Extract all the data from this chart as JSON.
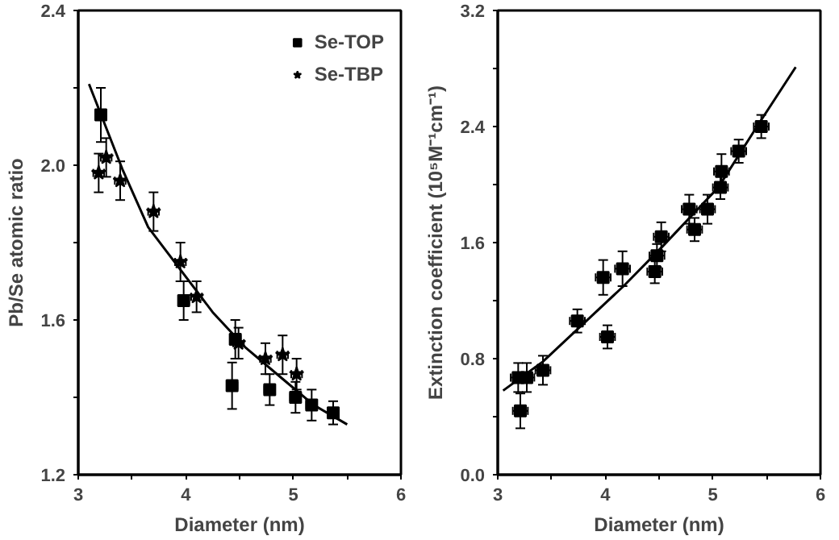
{
  "chart_data": [
    {
      "type": "scatter",
      "xlabel": "Diameter (nm)",
      "ylabel": "Pb/Se atomic ratio",
      "xlim": [
        3,
        6
      ],
      "ylim": [
        1.2,
        2.4
      ],
      "xticks": [
        3,
        {
          "value": 3.5,
          "label": null
        },
        4,
        {
          "value": 4.5,
          "label": null
        },
        5,
        {
          "value": 5.5,
          "label": null
        },
        6
      ],
      "yticks": [
        {
          "value": 1.2,
          "label": "1.2"
        },
        {
          "value": 1.4,
          "label": null
        },
        {
          "value": 1.6,
          "label": "1.6"
        },
        {
          "value": 1.8,
          "label": null
        },
        {
          "value": 2.0,
          "label": "2.0"
        },
        {
          "value": 2.2,
          "label": null
        },
        {
          "value": 2.4,
          "label": "2.4"
        }
      ],
      "legend": "top right",
      "grid": false,
      "series": [
        {
          "name": "Se-TOP",
          "color": "#000000",
          "marker": "square",
          "x": [
            3.21,
            3.98,
            4.43,
            4.46,
            4.78,
            5.02,
            5.17,
            5.37
          ],
          "values": [
            2.13,
            1.65,
            1.43,
            1.55,
            1.42,
            1.4,
            1.38,
            1.36
          ],
          "errors": [
            0.07,
            0.05,
            0.06,
            0.05,
            0.04,
            0.04,
            0.04,
            0.03
          ],
          "xerrors": [
            0.05,
            0.05,
            0.05,
            0.05,
            0.05,
            0.05,
            0.05,
            0.05
          ]
        },
        {
          "name": "Se-TBP",
          "color": "#000000",
          "marker": "star",
          "x": [
            3.19,
            3.26,
            3.39,
            3.7,
            3.95,
            4.1,
            4.49,
            4.74,
            4.9,
            5.03
          ],
          "values": [
            1.98,
            2.02,
            1.96,
            1.88,
            1.75,
            1.66,
            1.54,
            1.5,
            1.51,
            1.46
          ],
          "errors": [
            0.05,
            0.05,
            0.05,
            0.05,
            0.05,
            0.04,
            0.04,
            0.04,
            0.05,
            0.04
          ],
          "xerrors": [
            0.05,
            0.05,
            0.05,
            0.05,
            0.05,
            0.05,
            0.05,
            0.05,
            0.05,
            0.05
          ]
        },
        {
          "type": "line",
          "color": "#000000",
          "marker": "none",
          "x": [
            3.1,
            3.41,
            3.65,
            4.25,
            4.55,
            4.89,
            5.19,
            5.5
          ],
          "values": [
            2.21,
            1.99,
            1.84,
            1.62,
            1.53,
            1.45,
            1.38,
            1.33
          ]
        }
      ]
    },
    {
      "type": "scatter",
      "xlabel": "Diameter (nm)",
      "ylabel": "Extinction coefficient (10⁵M⁻¹cm⁻¹)",
      "xlim": [
        3,
        6
      ],
      "ylim": [
        0,
        3.2
      ],
      "xticks": [
        3,
        {
          "value": 3.5,
          "label": null
        },
        4,
        {
          "value": 4.5,
          "label": null
        },
        5,
        {
          "value": 5.5,
          "label": null
        },
        6
      ],
      "yticks": [
        {
          "value": 0.0,
          "label": "0.0"
        },
        {
          "value": 0.4,
          "label": null
        },
        {
          "value": 0.8,
          "label": "0.8"
        },
        {
          "value": 1.2,
          "label": null
        },
        {
          "value": 1.6,
          "label": "1.6"
        },
        {
          "value": 2.0,
          "label": null
        },
        {
          "value": 2.4,
          "label": "2.4"
        },
        {
          "value": 2.8,
          "label": null
        },
        {
          "value": 3.2,
          "label": "3.2"
        }
      ],
      "grid": false,
      "series": [
        {
          "color": "#000000",
          "marker": "square",
          "x": [
            3.21,
            3.19,
            3.27,
            3.42,
            3.74,
            3.98,
            4.02,
            4.16,
            4.46,
            4.48,
            4.52,
            4.78,
            4.83,
            4.95,
            5.07,
            5.08,
            5.24,
            5.45
          ],
          "values": [
            0.44,
            0.67,
            0.67,
            0.72,
            1.06,
            1.36,
            0.95,
            1.42,
            1.4,
            1.51,
            1.64,
            1.83,
            1.69,
            1.83,
            1.98,
            2.09,
            2.23,
            2.4
          ],
          "errors": [
            0.12,
            0.1,
            0.1,
            0.1,
            0.08,
            0.12,
            0.08,
            0.12,
            0.08,
            0.08,
            0.1,
            0.1,
            0.08,
            0.1,
            0.08,
            0.12,
            0.08,
            0.08
          ],
          "xerrors": [
            0.07,
            0.07,
            0.07,
            0.07,
            0.07,
            0.07,
            0.07,
            0.07,
            0.07,
            0.07,
            0.07,
            0.07,
            0.07,
            0.07,
            0.07,
            0.07,
            0.07,
            0.07
          ]
        },
        {
          "type": "line",
          "color": "#000000",
          "marker": "none",
          "x": [
            3.05,
            3.42,
            3.78,
            4.17,
            4.54,
            5.05,
            5.41,
            5.77
          ],
          "values": [
            0.58,
            0.78,
            1.03,
            1.3,
            1.58,
            1.98,
            2.4,
            2.81
          ]
        }
      ]
    }
  ]
}
